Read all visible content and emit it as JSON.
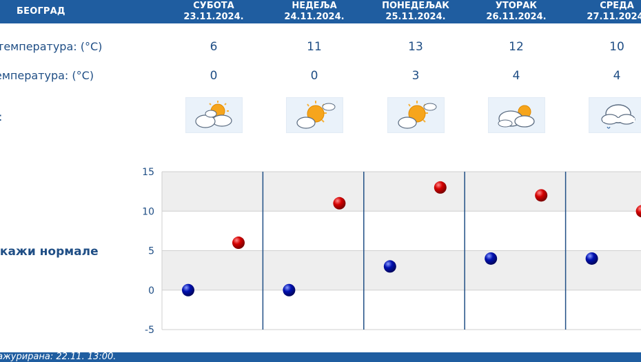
{
  "header": {
    "city": "БЕОГРАД"
  },
  "days": [
    {
      "name": "СУБОТА",
      "date": "23.11.2024.",
      "max": "6",
      "min": "0",
      "icon": "partly-cloudy-icon"
    },
    {
      "name": "НЕДЕЉА",
      "date": "24.11.2024.",
      "max": "11",
      "min": "0",
      "icon": "mostly-sunny-icon"
    },
    {
      "name": "ПОНЕДЕЉАК",
      "date": "25.11.2024.",
      "max": "13",
      "min": "3",
      "icon": "mostly-sunny-icon"
    },
    {
      "name": "УТОРАК",
      "date": "26.11.2024.",
      "max": "12",
      "min": "4",
      "icon": "cloudy-sun-icon"
    },
    {
      "name": "СРЕДА",
      "date": "27.11.2024.",
      "max": "10",
      "min": "4",
      "icon": "cloud-drizzle-icon"
    }
  ],
  "labels": {
    "max_temp": "температура: (°C)",
    "min_temp": "емпература: (°C)",
    "icons": ":"
  },
  "normals_link": "икажи нормале",
  "footer": {
    "updated": "а ажурирана:  22.11.  13:00."
  },
  "colors": {
    "header": "#1f5da0",
    "max_point": "#d40000",
    "min_point": "#0010b0",
    "text": "#1f4e85"
  },
  "chart_data": {
    "type": "scatter",
    "ylim": [
      -5,
      15
    ],
    "yticks": [
      15,
      10,
      5,
      0,
      -5
    ],
    "categories": [
      "23.11.2024.",
      "24.11.2024.",
      "25.11.2024.",
      "26.11.2024.",
      "27.11.2024."
    ],
    "series": [
      {
        "values": [
          0,
          0,
          3,
          4,
          4
        ],
        "color": "#0010b0"
      },
      {
        "values": [
          6,
          11,
          13,
          12,
          10
        ],
        "color": "#d40000"
      }
    ]
  }
}
